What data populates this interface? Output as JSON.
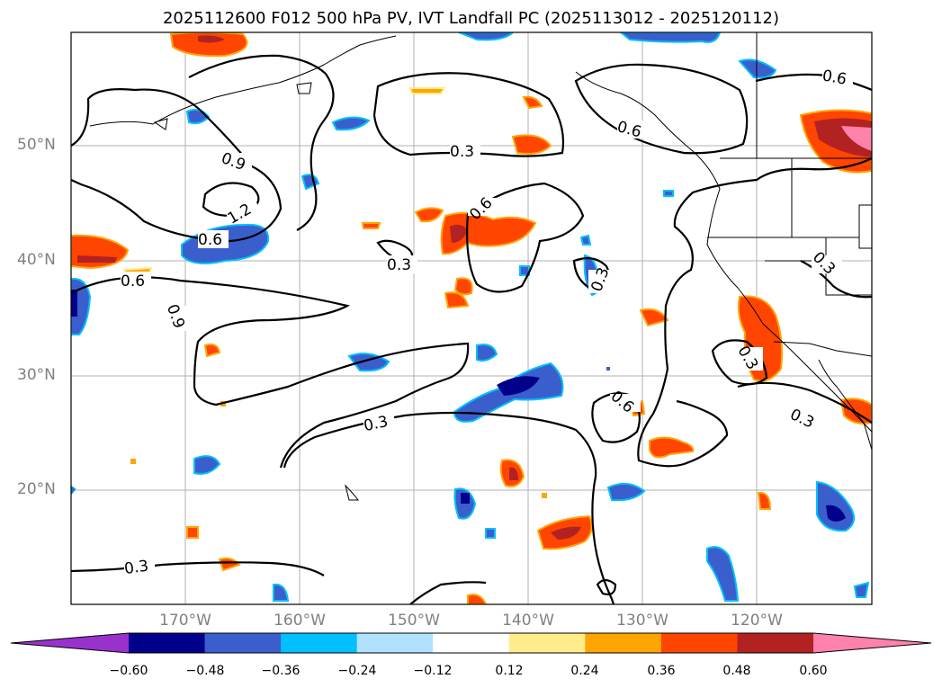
{
  "title": "2025112600 F012 500 hPa PV, IVT Landfall PC (2025113012 - 2025120112)",
  "map": {
    "lat_labels": [
      "50°N",
      "40°N",
      "30°N",
      "20°N"
    ],
    "lon_labels": [
      "170°W",
      "160°W",
      "150°W",
      "140°W",
      "130°W",
      "120°W"
    ],
    "gridlines": true,
    "contour_labels": [
      "0.3",
      "0.6",
      "0.9",
      "1.2"
    ]
  },
  "colorbar": {
    "ticks": [
      "−0.60",
      "−0.48",
      "−0.36",
      "−0.24",
      "−0.12",
      "0.12",
      "0.24",
      "0.36",
      "0.48",
      "0.60"
    ],
    "colors": [
      "#9932cc",
      "#00008b",
      "#3a5fcd",
      "#00bfff",
      "#b0e2ff",
      "#ffffff",
      "#ffec8b",
      "#ffa500",
      "#ff4500",
      "#b22222",
      "#ff82ab"
    ],
    "extend": "both"
  }
}
